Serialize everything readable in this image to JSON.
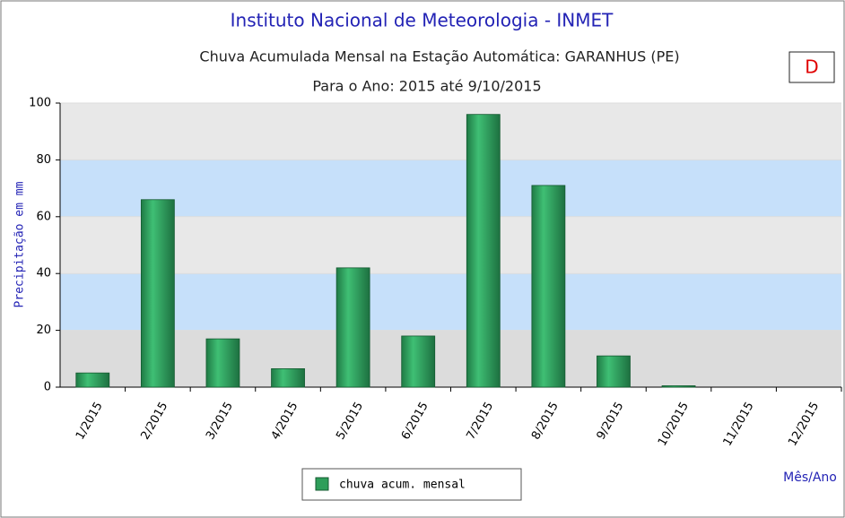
{
  "chart_data": {
    "type": "bar",
    "title": "Instituto Nacional de Meteorologia - INMET",
    "subtitle": "Chuva Acumulada Mensal na Estação Automática: GARANHUS (PE)",
    "subtitle2": "Para o Ano: 2015 até 9/10/2015",
    "annotation": "D",
    "y_label": "Precipitação em mm",
    "x_label": "Mês/Ano",
    "categories": [
      "1/2015",
      "2/2015",
      "3/2015",
      "4/2015",
      "5/2015",
      "6/2015",
      "7/2015",
      "8/2015",
      "9/2015",
      "10/2015",
      "11/2015",
      "12/2015"
    ],
    "series": [
      {
        "name": "chuva acum. mensal",
        "color": "#2e9e5a",
        "values": [
          5,
          66,
          17,
          6.5,
          42,
          18,
          96,
          71,
          11,
          0.5,
          0,
          0
        ]
      }
    ],
    "ylim": [
      0,
      100
    ],
    "yticks": [
      0,
      20,
      40,
      60,
      80,
      100
    ],
    "grid": true,
    "legend": "bottom"
  }
}
